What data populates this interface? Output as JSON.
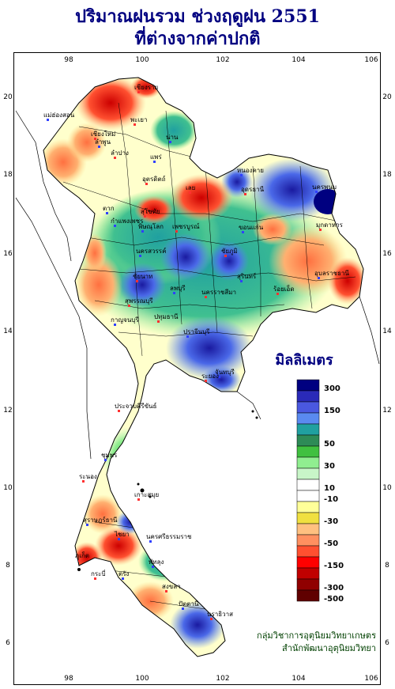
{
  "title": {
    "line1": "ปริมาณฝนรวม ช่วงฤดูฝน 2551",
    "line2": "ที่ต่างจากค่าปกติ"
  },
  "axes": {
    "longitude_ticks": [
      "98",
      "100",
      "102",
      "104",
      "106"
    ],
    "latitude_ticks": [
      "20",
      "18",
      "16",
      "14",
      "12",
      "10",
      "8",
      "6"
    ]
  },
  "legend": {
    "title": "มิลลิเมตร",
    "bins": [
      {
        "label": "300",
        "color": "#000080"
      },
      {
        "label": "",
        "color": "#2a2ab8"
      },
      {
        "label": "150",
        "color": "#4a58e0"
      },
      {
        "label": "",
        "color": "#5a8af0"
      },
      {
        "label": "",
        "color": "#20a0a0"
      },
      {
        "label": "50",
        "color": "#2e8b57"
      },
      {
        "label": "",
        "color": "#40c040"
      },
      {
        "label": "30",
        "color": "#90ee90"
      },
      {
        "label": "",
        "color": "#c8f5c8"
      },
      {
        "label": "10",
        "color": "#ffffff"
      },
      {
        "label": "-10",
        "color": "#ffffff"
      },
      {
        "label": "",
        "color": "#ffff99"
      },
      {
        "label": "-30",
        "color": "#f0e040"
      },
      {
        "label": "",
        "color": "#ffc080"
      },
      {
        "label": "-50",
        "color": "#ff9060"
      },
      {
        "label": "",
        "color": "#ff5030"
      },
      {
        "label": "-150",
        "color": "#ff0000"
      },
      {
        "label": "",
        "color": "#c00000"
      },
      {
        "label": "-300",
        "color": "#900000"
      },
      {
        "label": "-500",
        "color": "#600000"
      }
    ]
  },
  "places": [
    "เชียงราย",
    "แม่ฮ่องสอน",
    "พะเยา",
    "น่าน",
    "เชียงใหม่",
    "ลำพูน",
    "ลำปาง",
    "แพร่",
    "อุตรดิตถ์",
    "หนองคาย",
    "อุดรธานี",
    "นครพนม",
    "มุกดาหาร",
    "ตาก",
    "สุโขทัย",
    "พิษณุโลก",
    "เลย",
    "ขอนแก่น",
    "เพชรบูรณ์",
    "กำแพงเพชร",
    "ชัยภูมิ",
    "นครสวรรค์",
    "ชัยนาท",
    "ลพบุรี",
    "นครราชสีมา",
    "อุบลราชธานี",
    "สุพรรณบุรี",
    "กาญจนบุรี",
    "ปทุมธานี",
    "ปราจีนบุรี",
    "ระยอง",
    "จันทบุรี",
    "ประจวบคีรีขันธ์",
    "ชุมพร",
    "ระนอง",
    "สุราษฎร์ธานี",
    "เกาะสมุย",
    "นครศรีธรรมราช",
    "ภูเก็ต",
    "ตรัง",
    "สงขลา",
    "ปัตตานี",
    "นราธิวาส",
    "สุรินทร์",
    "ร้อยเอ็ด",
    "ไชยา",
    "กระบี่",
    "พัทลุง"
  ],
  "credit": {
    "line1": "กลุ่มวิชาการอุตุนิยมวิทยาเกษตร",
    "line2": "สำนักพัฒนาอุตุนิยมวิทยา"
  },
  "colors": {
    "title": "#000080",
    "credit": "#004000"
  }
}
